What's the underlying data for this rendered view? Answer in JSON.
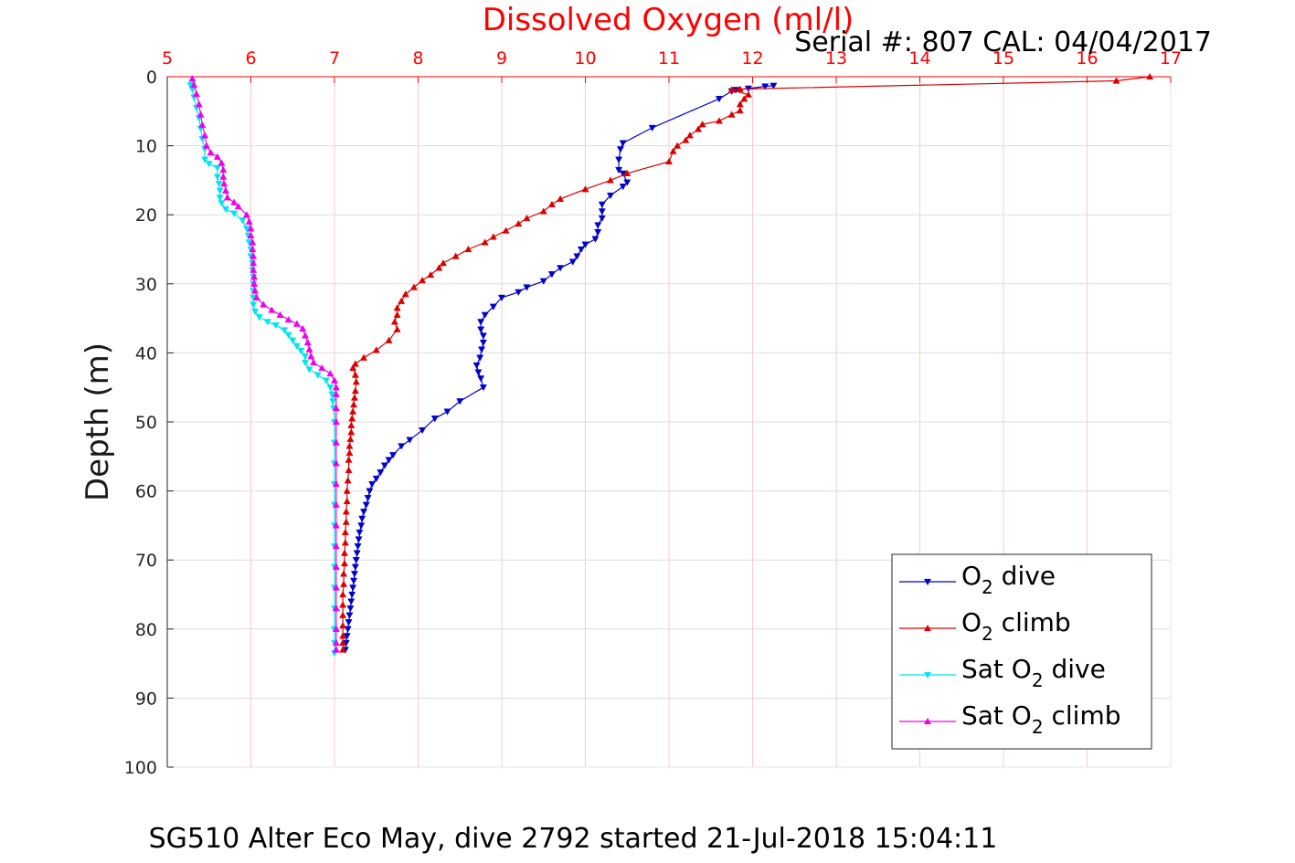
{
  "chart_data": {
    "type": "line",
    "title": "Dissolved Oxygen (ml/l)",
    "subtitle": "Serial #: 807  CAL: 04/04/2017",
    "caption": "SG510 Alter Eco May, dive 2792 started 21-Jul-2018 15:04:11",
    "ylabel": "Depth (m)",
    "xlim": [
      5,
      17
    ],
    "ylim": [
      0,
      100
    ],
    "y_reversed": true,
    "x_axis_position": "top",
    "grid": true,
    "x_ticks": [
      "5",
      "6",
      "7",
      "8",
      "9",
      "10",
      "11",
      "12",
      "13",
      "14",
      "15",
      "16",
      "17"
    ],
    "y_ticks": [
      "0",
      "10",
      "20",
      "30",
      "40",
      "50",
      "60",
      "70",
      "80",
      "90",
      "100"
    ],
    "legend_placement": "bottom-right",
    "colors": {
      "title": "#ff0000",
      "x_ticks": "#ff0000",
      "grid_vertical": "#ffc8c8",
      "grid_horizontal": "#dddddd"
    },
    "series": [
      {
        "name": "O₂ dive",
        "legend": {
          "base": "O",
          "sub": "2",
          "rest": " dive"
        },
        "color": "#0000cc",
        "marker": "triangle-down",
        "points": [
          [
            12.25,
            1.3
          ],
          [
            12.15,
            1.4
          ],
          [
            11.95,
            1.7
          ],
          [
            11.8,
            1.9
          ],
          [
            11.75,
            2.1
          ],
          [
            11.6,
            3.2
          ],
          [
            10.8,
            7.4
          ],
          [
            10.45,
            9.6
          ],
          [
            10.42,
            10.5
          ],
          [
            10.4,
            12
          ],
          [
            10.4,
            13.5
          ],
          [
            10.45,
            14
          ],
          [
            10.5,
            15.3
          ],
          [
            10.45,
            15.9
          ],
          [
            10.3,
            17.2
          ],
          [
            10.2,
            18.5
          ],
          [
            10.2,
            19.5
          ],
          [
            10.2,
            20.5
          ],
          [
            10.15,
            21.5
          ],
          [
            10.15,
            22.5
          ],
          [
            10.12,
            23.5
          ],
          [
            10.0,
            24.3
          ],
          [
            9.95,
            25
          ],
          [
            9.9,
            26
          ],
          [
            9.85,
            26.8
          ],
          [
            9.7,
            27.7
          ],
          [
            9.6,
            28.6
          ],
          [
            9.5,
            29.6
          ],
          [
            9.3,
            30.5
          ],
          [
            9.2,
            31.2
          ],
          [
            9.0,
            32
          ],
          [
            8.9,
            33.3
          ],
          [
            8.8,
            34.5
          ],
          [
            8.75,
            35.5
          ],
          [
            8.75,
            36.6
          ],
          [
            8.78,
            37.5
          ],
          [
            8.78,
            38.5
          ],
          [
            8.76,
            39.5
          ],
          [
            8.74,
            40.7
          ],
          [
            8.7,
            41.8
          ],
          [
            8.72,
            42.8
          ],
          [
            8.75,
            43.7
          ],
          [
            8.78,
            45
          ],
          [
            8.5,
            47
          ],
          [
            8.35,
            48.5
          ],
          [
            8.2,
            49.5
          ],
          [
            8.05,
            51.2
          ],
          [
            7.9,
            52.6
          ],
          [
            7.8,
            53.5
          ],
          [
            7.7,
            54.8
          ],
          [
            7.65,
            55.5
          ],
          [
            7.6,
            56.3
          ],
          [
            7.55,
            57.3
          ],
          [
            7.5,
            58.2
          ],
          [
            7.45,
            59
          ],
          [
            7.42,
            60
          ],
          [
            7.4,
            61
          ],
          [
            7.38,
            62
          ],
          [
            7.35,
            63
          ],
          [
            7.33,
            64
          ],
          [
            7.32,
            65
          ],
          [
            7.3,
            66
          ],
          [
            7.29,
            67
          ],
          [
            7.28,
            68
          ],
          [
            7.27,
            69
          ],
          [
            7.26,
            70
          ],
          [
            7.25,
            71
          ],
          [
            7.24,
            72
          ],
          [
            7.23,
            73
          ],
          [
            7.22,
            74
          ],
          [
            7.21,
            75
          ],
          [
            7.2,
            76
          ],
          [
            7.19,
            77
          ],
          [
            7.18,
            78
          ],
          [
            7.17,
            79
          ],
          [
            7.16,
            80
          ],
          [
            7.15,
            81
          ],
          [
            7.14,
            82
          ],
          [
            7.13,
            83
          ]
        ]
      },
      {
        "name": "O₂ climb",
        "legend": {
          "base": "O",
          "sub": "2",
          "rest": " climb"
        },
        "color": "#dd0000",
        "marker": "triangle-up",
        "points": [
          [
            16.75,
            0
          ],
          [
            16.35,
            0.6
          ],
          [
            11.85,
            1.8
          ],
          [
            11.75,
            1.9
          ],
          [
            11.95,
            2.6
          ],
          [
            11.9,
            3.2
          ],
          [
            11.85,
            4
          ],
          [
            11.85,
            4.9
          ],
          [
            11.75,
            5.5
          ],
          [
            11.6,
            6.4
          ],
          [
            11.4,
            6.9
          ],
          [
            11.35,
            7.6
          ],
          [
            11.25,
            8.5
          ],
          [
            11.2,
            9.2
          ],
          [
            11.1,
            10
          ],
          [
            11.05,
            10.8
          ],
          [
            11.0,
            12.3
          ],
          [
            10.5,
            14
          ],
          [
            10.3,
            15
          ],
          [
            10.0,
            16.3
          ],
          [
            9.7,
            17.7
          ],
          [
            9.6,
            18.5
          ],
          [
            9.5,
            19.5
          ],
          [
            9.3,
            20.5
          ],
          [
            9.2,
            21.3
          ],
          [
            9.05,
            22.3
          ],
          [
            8.9,
            23.2
          ],
          [
            8.8,
            24
          ],
          [
            8.6,
            25
          ],
          [
            8.45,
            26
          ],
          [
            8.3,
            27
          ],
          [
            8.25,
            27.7
          ],
          [
            8.15,
            28.7
          ],
          [
            8.05,
            29.5
          ],
          [
            7.95,
            30.5
          ],
          [
            7.85,
            31.5
          ],
          [
            7.8,
            32.5
          ],
          [
            7.75,
            33.5
          ],
          [
            7.75,
            34.5
          ],
          [
            7.72,
            35.5
          ],
          [
            7.75,
            36.6
          ],
          [
            7.65,
            38.2
          ],
          [
            7.5,
            39.6
          ],
          [
            7.35,
            40.7
          ],
          [
            7.25,
            41.6
          ],
          [
            7.22,
            42.2
          ],
          [
            7.25,
            43.2
          ],
          [
            7.26,
            44.2
          ],
          [
            7.25,
            45.5
          ],
          [
            7.24,
            46.5
          ],
          [
            7.23,
            47.5
          ],
          [
            7.22,
            48.5
          ],
          [
            7.21,
            49.5
          ],
          [
            7.2,
            50.5
          ],
          [
            7.2,
            51.5
          ],
          [
            7.19,
            52.5
          ],
          [
            7.18,
            53.5
          ],
          [
            7.18,
            54.5
          ],
          [
            7.17,
            55.5
          ],
          [
            7.17,
            57
          ],
          [
            7.16,
            58.5
          ],
          [
            7.15,
            60
          ],
          [
            7.15,
            61.5
          ],
          [
            7.14,
            63
          ],
          [
            7.14,
            64.5
          ],
          [
            7.13,
            66
          ],
          [
            7.13,
            67.5
          ],
          [
            7.12,
            69
          ],
          [
            7.12,
            70.5
          ],
          [
            7.11,
            72
          ],
          [
            7.11,
            73.5
          ],
          [
            7.1,
            75
          ],
          [
            7.1,
            76.5
          ],
          [
            7.1,
            78
          ],
          [
            7.1,
            79.5
          ],
          [
            7.1,
            81
          ],
          [
            7.1,
            82
          ],
          [
            7.1,
            83
          ]
        ]
      },
      {
        "name": "Sat O₂ dive",
        "legend": {
          "base": "Sat O",
          "sub": "2",
          "rest": " dive"
        },
        "color": "#00e5ee",
        "marker": "triangle-down",
        "points": [
          [
            5.28,
            1.2
          ],
          [
            5.3,
            1.8
          ],
          [
            5.32,
            3
          ],
          [
            5.35,
            4.5
          ],
          [
            5.38,
            6
          ],
          [
            5.4,
            7.5
          ],
          [
            5.42,
            9
          ],
          [
            5.45,
            10.5
          ],
          [
            5.45,
            12
          ],
          [
            5.5,
            12.6
          ],
          [
            5.6,
            13.2
          ],
          [
            5.6,
            14.5
          ],
          [
            5.62,
            15.5
          ],
          [
            5.63,
            16.5
          ],
          [
            5.63,
            17.5
          ],
          [
            5.65,
            18.3
          ],
          [
            5.7,
            19.2
          ],
          [
            5.8,
            19.8
          ],
          [
            5.9,
            20.8
          ],
          [
            5.95,
            22
          ],
          [
            5.97,
            23
          ],
          [
            5.98,
            24
          ],
          [
            6.0,
            25
          ],
          [
            6.0,
            26
          ],
          [
            6.02,
            27
          ],
          [
            6.02,
            28
          ],
          [
            6.03,
            29
          ],
          [
            6.03,
            30
          ],
          [
            6.03,
            31
          ],
          [
            6.03,
            32
          ],
          [
            6.03,
            33
          ],
          [
            6.05,
            34
          ],
          [
            6.1,
            34.8
          ],
          [
            6.2,
            35.5
          ],
          [
            6.3,
            36
          ],
          [
            6.4,
            36.7
          ],
          [
            6.45,
            37.4
          ],
          [
            6.5,
            38.2
          ],
          [
            6.55,
            39
          ],
          [
            6.6,
            39.7
          ],
          [
            6.65,
            40.5
          ],
          [
            6.65,
            41.4
          ],
          [
            6.7,
            42.4
          ],
          [
            6.8,
            43.2
          ],
          [
            6.9,
            44
          ],
          [
            6.95,
            45
          ],
          [
            6.97,
            46
          ],
          [
            6.98,
            47
          ],
          [
            6.99,
            48
          ],
          [
            7.0,
            50
          ],
          [
            7.0,
            53
          ],
          [
            7.0,
            56
          ],
          [
            7.0,
            59
          ],
          [
            7.0,
            62
          ],
          [
            7.0,
            65
          ],
          [
            7.0,
            68
          ],
          [
            7.0,
            71
          ],
          [
            7.0,
            74
          ],
          [
            7.0,
            77
          ],
          [
            7.0,
            80
          ],
          [
            7.0,
            82
          ],
          [
            7.0,
            83.5
          ]
        ]
      },
      {
        "name": "Sat O₂ climb",
        "legend": {
          "base": "Sat O",
          "sub": "2",
          "rest": " climb"
        },
        "color": "#ee00ee",
        "marker": "triangle-up",
        "points": [
          [
            5.3,
            0.3
          ],
          [
            5.32,
            1.2
          ],
          [
            5.35,
            2.5
          ],
          [
            5.38,
            4
          ],
          [
            5.4,
            5.5
          ],
          [
            5.42,
            7
          ],
          [
            5.45,
            8.5
          ],
          [
            5.47,
            10
          ],
          [
            5.52,
            11
          ],
          [
            5.6,
            11.6
          ],
          [
            5.65,
            12.5
          ],
          [
            5.67,
            13.5
          ],
          [
            5.67,
            14.5
          ],
          [
            5.68,
            15.5
          ],
          [
            5.7,
            16.5
          ],
          [
            5.72,
            17.5
          ],
          [
            5.8,
            18.2
          ],
          [
            5.85,
            18.8
          ],
          [
            5.95,
            20
          ],
          [
            5.98,
            21
          ],
          [
            6.0,
            22
          ],
          [
            6.0,
            23
          ],
          [
            6.02,
            24
          ],
          [
            6.02,
            25
          ],
          [
            6.03,
            26
          ],
          [
            6.03,
            27
          ],
          [
            6.03,
            28
          ],
          [
            6.04,
            29
          ],
          [
            6.04,
            30
          ],
          [
            6.05,
            31
          ],
          [
            6.07,
            32
          ],
          [
            6.15,
            33
          ],
          [
            6.25,
            33.8
          ],
          [
            6.35,
            34.5
          ],
          [
            6.45,
            35.2
          ],
          [
            6.55,
            35.8
          ],
          [
            6.62,
            36.5
          ],
          [
            6.65,
            37.5
          ],
          [
            6.68,
            38.5
          ],
          [
            6.7,
            39.5
          ],
          [
            6.72,
            40.5
          ],
          [
            6.75,
            41.4
          ],
          [
            6.85,
            42.2
          ],
          [
            6.95,
            43
          ],
          [
            7.0,
            44
          ],
          [
            7.02,
            45
          ],
          [
            7.02,
            46
          ],
          [
            7.02,
            48
          ],
          [
            7.02,
            50
          ],
          [
            7.02,
            53
          ],
          [
            7.02,
            56
          ],
          [
            7.02,
            59
          ],
          [
            7.02,
            62
          ],
          [
            7.02,
            65
          ],
          [
            7.02,
            68
          ],
          [
            7.02,
            71
          ],
          [
            7.02,
            74
          ],
          [
            7.02,
            77
          ],
          [
            7.02,
            80
          ],
          [
            7.02,
            82
          ],
          [
            7.02,
            83
          ]
        ]
      }
    ]
  }
}
